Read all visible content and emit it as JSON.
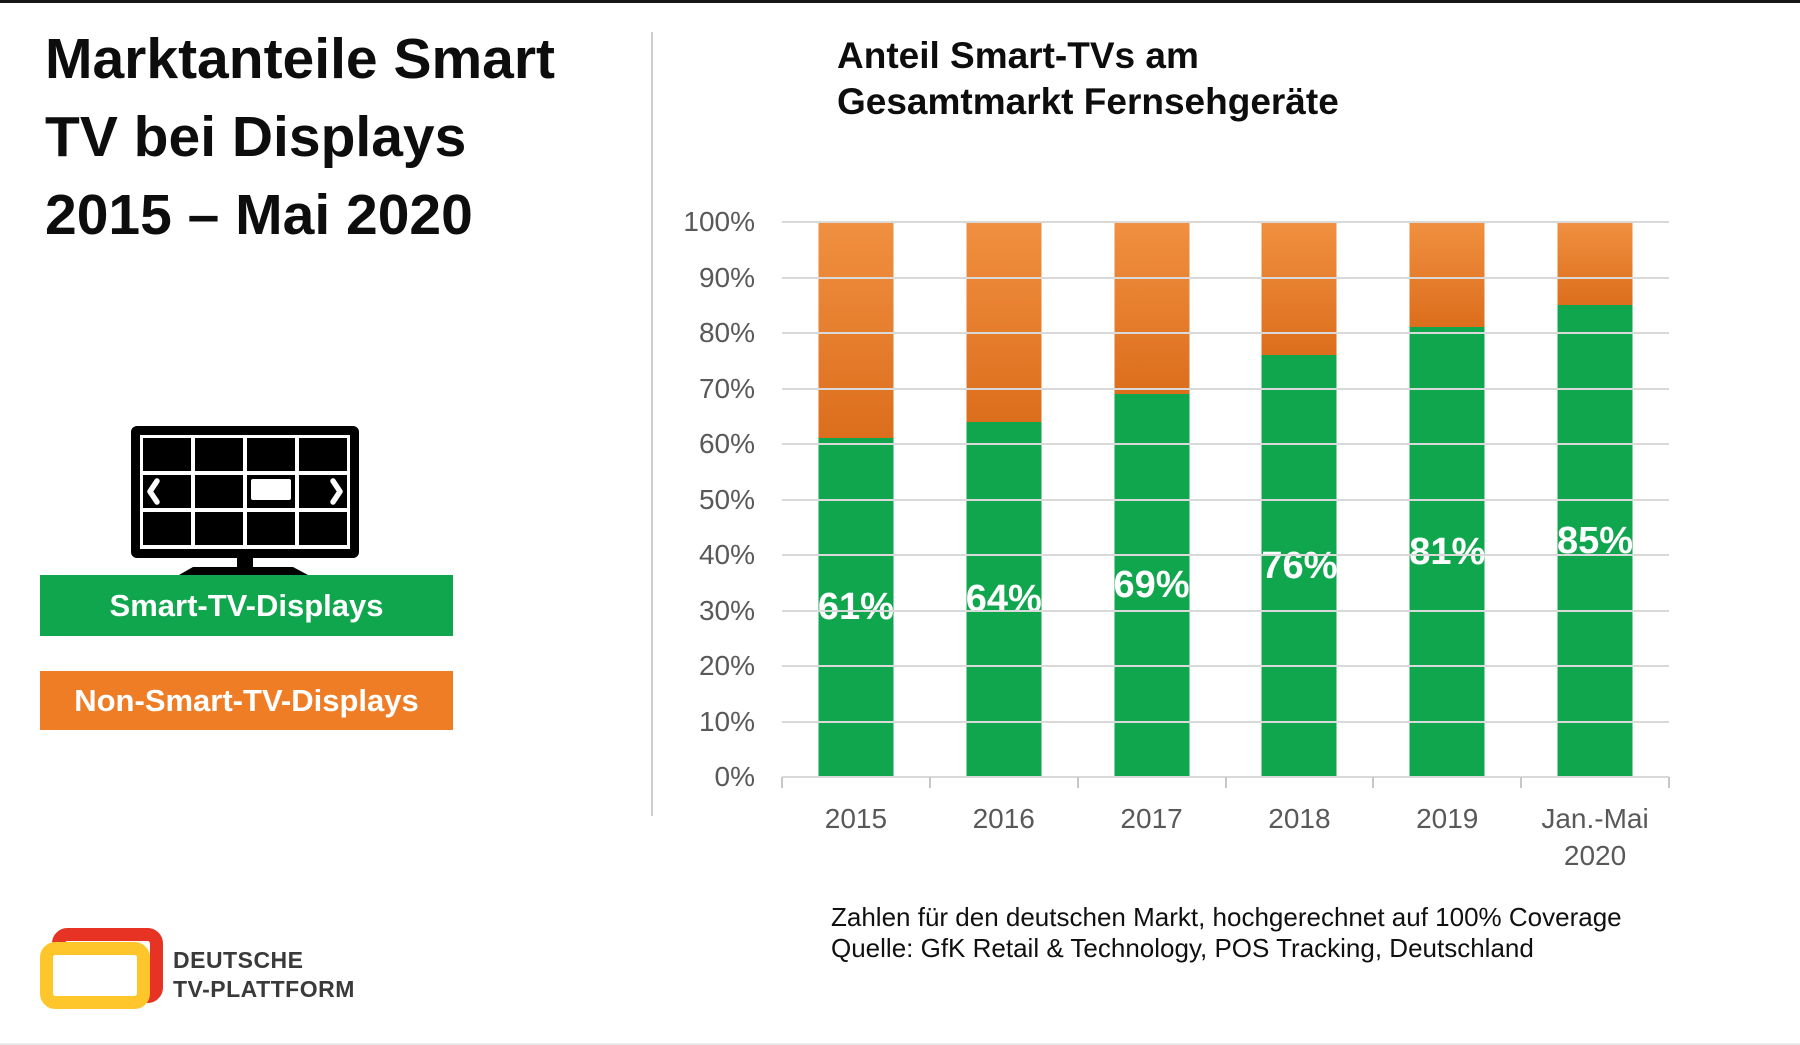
{
  "main_title": {
    "lines": [
      "Marktanteile Smart",
      "TV bei Displays",
      "2015 – Mai 2020"
    ]
  },
  "legend": {
    "items": [
      {
        "label": "Smart-TV-Displays",
        "color": "#0FA64D"
      },
      {
        "label": "Non-Smart-TV-Displays",
        "color": "#EF7D26"
      }
    ]
  },
  "chart": {
    "title_lines": [
      "Anteil Smart-TVs am",
      "Gesamtmarkt Fernsehgeräte"
    ]
  },
  "chart_data": {
    "type": "bar",
    "stacked": true,
    "title": "Anteil Smart-TVs am Gesamtmarkt Fernsehgeräte",
    "categories": [
      "2015",
      "2016",
      "2017",
      "2018",
      "2019",
      "Jan.-Mai\n2020"
    ],
    "series": [
      {
        "name": "Smart-TV-Displays",
        "color": "#0FA64D",
        "values": [
          61,
          64,
          69,
          76,
          81,
          85
        ]
      },
      {
        "name": "Non-Smart-TV-Displays",
        "color": "#EF7D26",
        "values": [
          39,
          36,
          31,
          24,
          19,
          15
        ]
      }
    ],
    "value_labels": [
      "61%",
      "64%",
      "69%",
      "76%",
      "81%",
      "85%"
    ],
    "xlabel": "",
    "ylabel": "",
    "ylim": [
      0,
      100
    ],
    "ytick_labels": [
      "100%",
      "90%",
      "80%",
      "70%",
      "60%",
      "50%",
      "40%",
      "30%",
      "20%",
      "10%",
      "0%"
    ],
    "grid": true,
    "legend_position": "left-panel"
  },
  "footnote": {
    "lines": [
      "Zahlen für den deutschen Markt, hochgerechnet auf 100% Coverage",
      "Quelle: GfK Retail & Technology, POS Tracking, Deutschland"
    ]
  },
  "logo": {
    "text_lines": [
      "DEUTSCHE",
      "TV-PLATTFORM"
    ],
    "colors": {
      "red": "#E63323",
      "yellow": "#FFC62B",
      "text": "#3A3A3B"
    }
  }
}
